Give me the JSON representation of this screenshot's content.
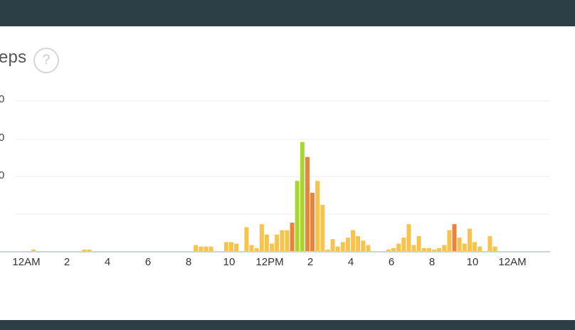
{
  "card": {
    "title": "eps"
  },
  "help_icon": {
    "label": "?"
  },
  "chart_data": {
    "type": "bar",
    "title": "eps",
    "y_tick_labels": [
      "0",
      "0",
      "0"
    ],
    "x_tick_labels": [
      "12AM",
      "2",
      "4",
      "6",
      "8",
      "10",
      "12PM",
      "2",
      "4",
      "6",
      "8",
      "10",
      "12AM"
    ],
    "colors": {
      "low": "#f7c34a",
      "medium": "#e8823f",
      "high": "#a9d52f",
      "axis": "#c9d3dc",
      "grid": "#ececec"
    },
    "x_unit": "hour of day (15-minute intervals)",
    "series": [
      {
        "x": [
          0.25,
          2.75,
          3.0,
          8.25,
          8.5,
          8.75,
          9.0,
          9.75,
          10.0,
          10.25,
          10.75,
          11.0,
          11.25,
          11.5,
          11.75,
          12.0,
          12.25,
          12.5,
          12.75,
          13.0,
          13.25,
          13.5,
          13.75,
          14.0,
          14.25,
          14.5,
          14.75,
          15.0,
          15.25,
          15.5,
          15.75,
          16.0,
          16.25,
          16.5,
          16.75,
          17.75,
          18.0,
          18.25,
          18.5,
          18.75,
          19.0,
          19.25,
          19.5,
          19.75,
          20.0,
          20.25,
          20.5,
          20.75,
          21.0,
          21.25,
          21.5,
          21.75,
          22.0,
          22.25,
          22.75,
          23.0
        ],
        "values": [
          1,
          1,
          1,
          4,
          3,
          3,
          3,
          6,
          6,
          5,
          16,
          4,
          2,
          18,
          11,
          5,
          11,
          14,
          14,
          19,
          47,
          73,
          63,
          39,
          47,
          31,
          1,
          8,
          3,
          6,
          9,
          14,
          10,
          7,
          4,
          1,
          2,
          5,
          9,
          18,
          4,
          10,
          2,
          2,
          1,
          2,
          4,
          14,
          18,
          9,
          5,
          15,
          6,
          3,
          10,
          3
        ],
        "levels": [
          "low",
          "low",
          "low",
          "low",
          "low",
          "low",
          "low",
          "low",
          "low",
          "low",
          "low",
          "low",
          "low",
          "low",
          "low",
          "low",
          "low",
          "low",
          "low",
          "medium",
          "high",
          "high",
          "medium",
          "medium",
          "low",
          "low",
          "low",
          "low",
          "low",
          "low",
          "low",
          "low",
          "low",
          "low",
          "low",
          "low",
          "low",
          "low",
          "low",
          "low",
          "low",
          "low",
          "low",
          "low",
          "low",
          "low",
          "low",
          "low",
          "medium",
          "low",
          "low",
          "low",
          "low",
          "low",
          "low",
          "low"
        ]
      }
    ],
    "grid": true
  }
}
